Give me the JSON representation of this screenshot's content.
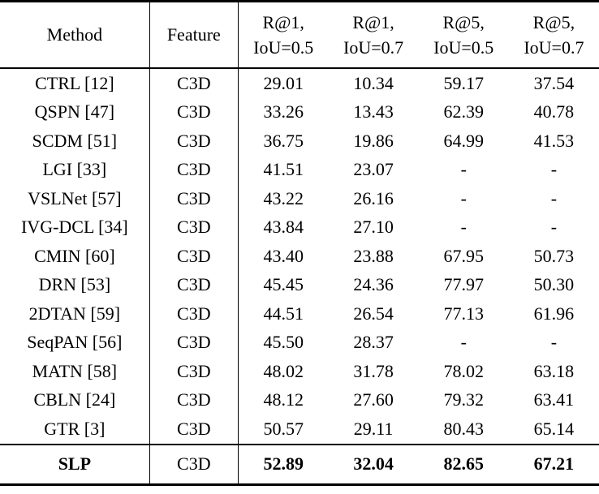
{
  "table": {
    "header": {
      "method": "Method",
      "feature": "Feature",
      "metrics": [
        {
          "line1": "R@1,",
          "line2": "IoU=0.5"
        },
        {
          "line1": "R@1,",
          "line2": "IoU=0.7"
        },
        {
          "line1": "R@5,",
          "line2": "IoU=0.5"
        },
        {
          "line1": "R@5,",
          "line2": "IoU=0.7"
        }
      ]
    },
    "rows": [
      {
        "method": "CTRL [12]",
        "feature": "C3D",
        "values": [
          "29.01",
          "10.34",
          "59.17",
          "37.54"
        ]
      },
      {
        "method": "QSPN [47]",
        "feature": "C3D",
        "values": [
          "33.26",
          "13.43",
          "62.39",
          "40.78"
        ]
      },
      {
        "method": "SCDM [51]",
        "feature": "C3D",
        "values": [
          "36.75",
          "19.86",
          "64.99",
          "41.53"
        ]
      },
      {
        "method": "LGI [33]",
        "feature": "C3D",
        "values": [
          "41.51",
          "23.07",
          "-",
          "-"
        ]
      },
      {
        "method": "VSLNet [57]",
        "feature": "C3D",
        "values": [
          "43.22",
          "26.16",
          "-",
          "-"
        ]
      },
      {
        "method": "IVG-DCL [34]",
        "feature": "C3D",
        "values": [
          "43.84",
          "27.10",
          "-",
          "-"
        ]
      },
      {
        "method": "CMIN [60]",
        "feature": "C3D",
        "values": [
          "43.40",
          "23.88",
          "67.95",
          "50.73"
        ]
      },
      {
        "method": "DRN [53]",
        "feature": "C3D",
        "values": [
          "45.45",
          "24.36",
          "77.97",
          "50.30"
        ]
      },
      {
        "method": "2DTAN [59]",
        "feature": "C3D",
        "values": [
          "44.51",
          "26.54",
          "77.13",
          "61.96"
        ]
      },
      {
        "method": "SeqPAN [56]",
        "feature": "C3D",
        "values": [
          "45.50",
          "28.37",
          "-",
          "-"
        ]
      },
      {
        "method": "MATN [58]",
        "feature": "C3D",
        "values": [
          "48.02",
          "31.78",
          "78.02",
          "63.18"
        ]
      },
      {
        "method": "CBLN [24]",
        "feature": "C3D",
        "values": [
          "48.12",
          "27.60",
          "79.32",
          "63.41"
        ]
      },
      {
        "method": "GTR [3]",
        "feature": "C3D",
        "values": [
          "50.57",
          "29.11",
          "80.43",
          "65.14"
        ]
      }
    ],
    "highlight_row": {
      "method": "SLP",
      "feature": "C3D",
      "values": [
        "52.89",
        "32.04",
        "82.65",
        "67.21"
      ]
    }
  },
  "colors": {
    "text": "#000000",
    "background": "#ffffff",
    "rule": "#000000"
  }
}
